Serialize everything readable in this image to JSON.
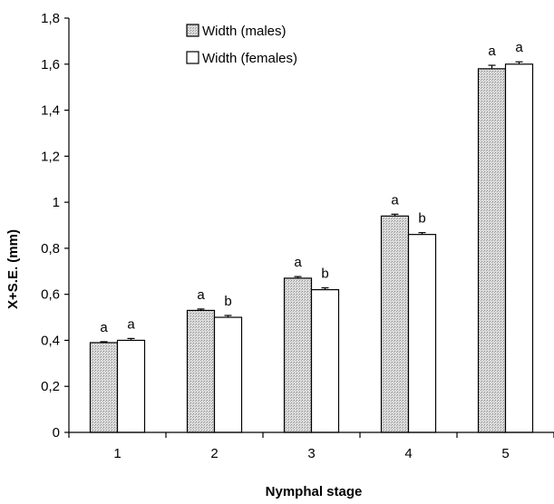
{
  "chart_data": {
    "type": "bar",
    "title": "",
    "xlabel": "Nymphal stage",
    "ylabel": "X+S.E. (mm)",
    "categories": [
      "1",
      "2",
      "3",
      "4",
      "5"
    ],
    "ylim": [
      0,
      1.8
    ],
    "yticks": [
      "0",
      "0,2",
      "0,4",
      "0,6",
      "0,8",
      "1",
      "1,2",
      "1,4",
      "1,6",
      "1,8"
    ],
    "grid": false,
    "legend_position": "top-center",
    "series": [
      {
        "name": "Width (males)",
        "color": "#d0d0d0",
        "pattern": "dotted-gray",
        "values": [
          0.39,
          0.53,
          0.67,
          0.94,
          1.58
        ],
        "errors": [
          0.004,
          0.006,
          0.007,
          0.008,
          0.015
        ],
        "significance": [
          "a",
          "a",
          "a",
          "a",
          "a"
        ]
      },
      {
        "name": "Width (females)",
        "color": "#ffffff",
        "pattern": "none",
        "values": [
          0.4,
          0.5,
          0.62,
          0.86,
          1.6
        ],
        "errors": [
          0.008,
          0.008,
          0.008,
          0.008,
          0.01
        ],
        "significance": [
          "a",
          "b",
          "b",
          "b",
          "a"
        ]
      }
    ]
  }
}
